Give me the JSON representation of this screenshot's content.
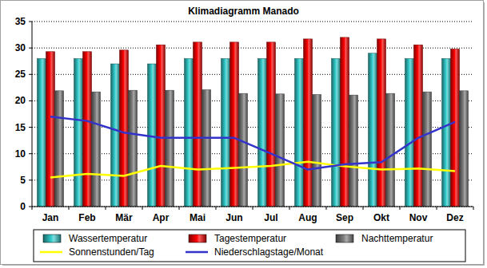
{
  "chart_data": {
    "type": "bar",
    "title": "Klimadiagramm Manado",
    "categories": [
      "Jan",
      "Feb",
      "Mär",
      "Apr",
      "Mai",
      "Jun",
      "Jul",
      "Aug",
      "Sep",
      "Okt",
      "Nov",
      "Dez"
    ],
    "series": [
      {
        "name": "Wassertemperatur",
        "color": "#33cccc",
        "type": "bar",
        "values": [
          28,
          28,
          27,
          27,
          28,
          28,
          28,
          28,
          28,
          29,
          28,
          28
        ]
      },
      {
        "name": "Tagestemperatur",
        "color": "#ff0000",
        "type": "bar",
        "values": [
          29.3,
          29.3,
          29.6,
          30.6,
          31.1,
          31.1,
          31.1,
          31.7,
          32,
          31.7,
          30.6,
          29.8
        ]
      },
      {
        "name": "Nachttemperatur",
        "color": "#808080",
        "type": "bar",
        "values": [
          21.9,
          21.7,
          22,
          22,
          22.1,
          21.4,
          21.3,
          21.2,
          21.1,
          21.4,
          21.7,
          21.9
        ]
      },
      {
        "name": "Sonnenstunden/Tag",
        "color": "#ffff00",
        "type": "line",
        "values": [
          5.5,
          6.2,
          5.8,
          7.7,
          7,
          7.3,
          7.7,
          8.5,
          7.6,
          7,
          7.2,
          6.7
        ]
      },
      {
        "name": "Niederschlagstage/Monat",
        "color": "#3333cc",
        "type": "line",
        "values": [
          17,
          16.2,
          14,
          13,
          13,
          13,
          10,
          7,
          8,
          8.4,
          13,
          16
        ]
      }
    ],
    "ylim": [
      0,
      35
    ],
    "yticks": [
      0,
      5,
      10,
      15,
      20,
      25,
      30,
      35
    ],
    "grid": true,
    "legend": "bottom"
  }
}
